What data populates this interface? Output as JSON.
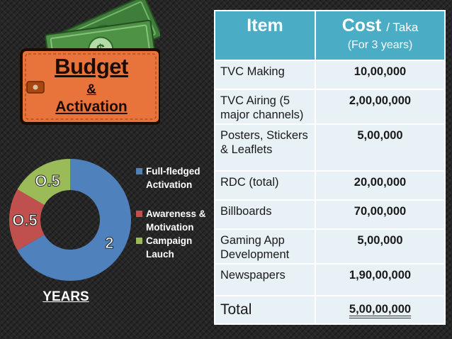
{
  "title": {
    "line1": "Budget",
    "line2": "&",
    "line3": "Activation"
  },
  "icons": [
    "cash-bills-icon",
    "wallet-icon"
  ],
  "chart_data": {
    "type": "pie",
    "subtype": "donut",
    "xlabel": "YEARS",
    "categories": [
      "Full-fledged Activation",
      "Awareness & Motivation",
      "Campaign Lauch"
    ],
    "values": [
      2,
      0.5,
      0.5
    ],
    "value_labels": [
      "2",
      "O.5",
      "O.5"
    ],
    "colors": [
      "#4f81bd",
      "#c0504d",
      "#9bbb59"
    ],
    "legend_position": "right"
  },
  "table": {
    "header_item": "Item",
    "header_cost": "Cost",
    "header_cost_unit": "/ Taka",
    "header_cost_sub": "(For 3 years)",
    "rows": [
      {
        "item": "TVC Making",
        "cost": "10,00,000"
      },
      {
        "item": "TVC Airing (5 major channels)",
        "cost": "2,00,00,000"
      },
      {
        "item": "Posters, Stickers & Leaflets",
        "cost": "5,00,000"
      },
      {
        "item": "RDC (total)",
        "cost": "20,00,000"
      },
      {
        "item": "Billboards",
        "cost": "70,00,000"
      },
      {
        "item": "Gaming App Development",
        "cost": "5,00,000"
      },
      {
        "item": "Newspapers",
        "cost": "1,90,00,000"
      }
    ],
    "total_label": "Total",
    "total_value": "5,00,00,000"
  },
  "colors": {
    "background": "#262626",
    "header": "#4bacc6",
    "row": "#e8f1f6",
    "wallet": "#e8743b"
  }
}
